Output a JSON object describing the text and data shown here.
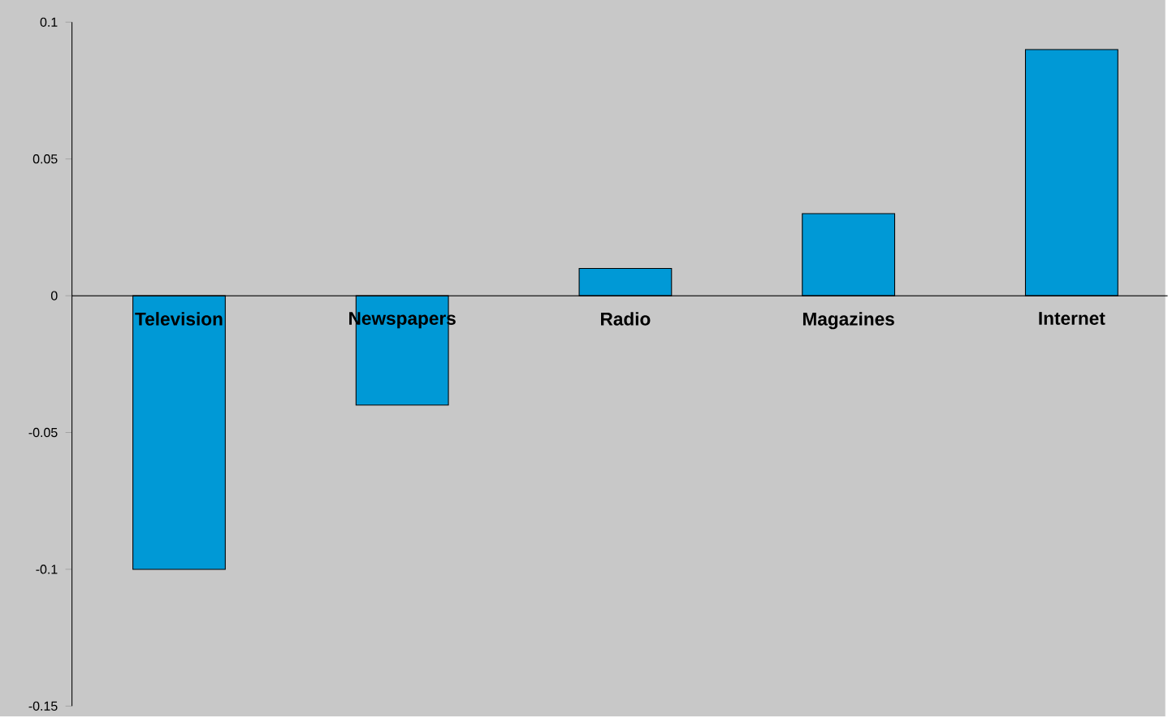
{
  "chart_data": {
    "type": "bar",
    "categories": [
      "Television",
      "Newspapers",
      "Radio",
      "Magazines",
      "Internet"
    ],
    "values": [
      -0.1,
      -0.04,
      0.01,
      0.03,
      0.09
    ],
    "color": "#0099d6",
    "ylim": [
      -0.15,
      0.1
    ],
    "yticks": [
      -0.15,
      -0.1,
      -0.05,
      0,
      0.05,
      0.1
    ]
  }
}
